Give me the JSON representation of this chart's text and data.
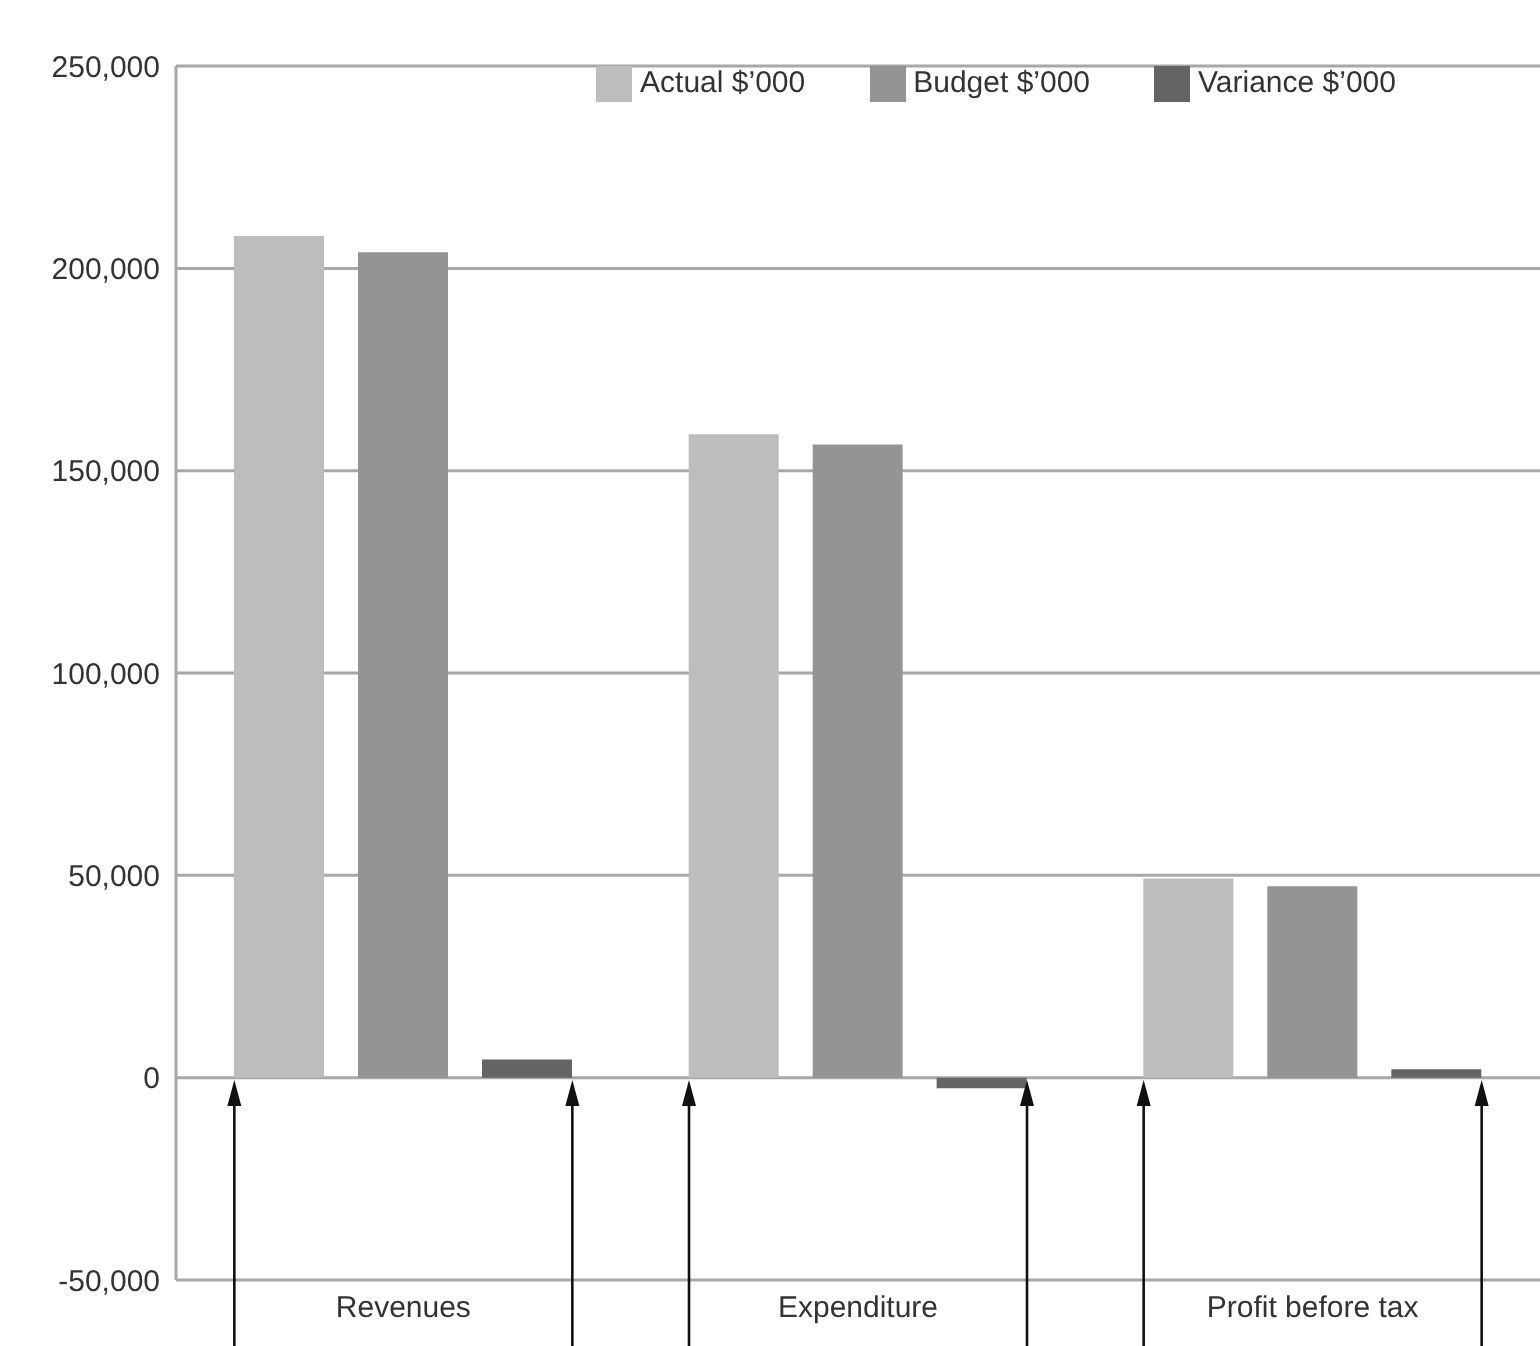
{
  "chart_data": {
    "type": "bar",
    "categories": [
      "Revenues",
      "Expenditure",
      "Profit before tax"
    ],
    "series": [
      {
        "name": "Actual $’000",
        "color": "#bcbdbf",
        "values": [
          208000,
          159000,
          49200
        ]
      },
      {
        "name": "Budget $’000",
        "color": "#939495",
        "values": [
          204000,
          156500,
          47300
        ]
      },
      {
        "name": "Variance $’000",
        "color": "#636466",
        "values": [
          4500,
          -2600,
          2100
        ]
      }
    ],
    "ylim": [
      -50000,
      250000
    ],
    "yticks": [
      {
        "value": -50000,
        "label": "-50,000"
      },
      0,
      {
        "value": 50000,
        "label": "50,000"
      },
      {
        "value": 100000,
        "label": "100,000"
      },
      {
        "value": 150000,
        "label": "150,000"
      },
      {
        "value": 200000,
        "label": "200,000"
      },
      {
        "value": 250000,
        "label": "250,000"
      }
    ],
    "grid": "y",
    "legend": "top right"
  }
}
